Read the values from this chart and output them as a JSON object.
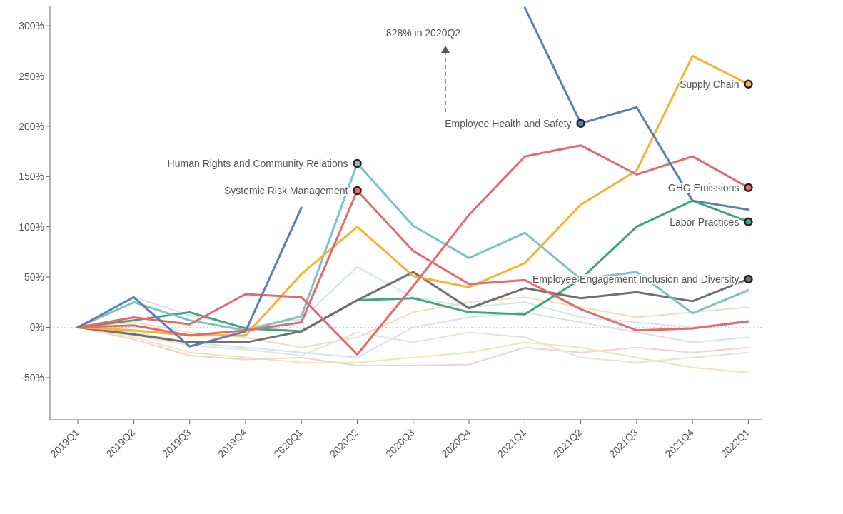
{
  "chart_data": {
    "type": "line",
    "categories": [
      "2019Q1",
      "2019Q2",
      "2019Q3",
      "2019Q4",
      "2020Q1",
      "2020Q2",
      "2020Q3",
      "2020Q4",
      "2021Q1",
      "2021Q2",
      "2021Q3",
      "2021Q4",
      "2022Q1"
    ],
    "ylim": [
      -92,
      320
    ],
    "yticks": [
      {
        "value": -50,
        "label": "-50%"
      },
      {
        "value": 0,
        "label": "0%"
      },
      {
        "value": 50,
        "label": "50%"
      },
      {
        "value": 100,
        "label": "100%"
      },
      {
        "value": 150,
        "label": "150%"
      },
      {
        "value": 200,
        "label": "200%"
      },
      {
        "value": 250,
        "label": "250%"
      },
      {
        "value": 300,
        "label": "300%"
      }
    ],
    "marker": "none",
    "line_style": "solid",
    "ref_lines": [
      {
        "axis": "y",
        "value": 0,
        "color": "#d0d0d0",
        "line_style": "dotted"
      }
    ],
    "series": [
      {
        "color": "#cfe5e8",
        "values": [
          0,
          30,
          12,
          0,
          8,
          60,
          30,
          20,
          25,
          10,
          5,
          0,
          5
        ]
      },
      {
        "color": "#efe6b8",
        "values": [
          0,
          -10,
          -25,
          -30,
          -35,
          -35,
          -30,
          -25,
          -15,
          -20,
          -30,
          -40,
          -45
        ]
      },
      {
        "color": "#f2d0d4",
        "values": [
          0,
          -12,
          -28,
          -32,
          -30,
          -38,
          -38,
          -37,
          -20,
          -25,
          -20,
          -25,
          -20
        ]
      },
      {
        "color": "#d4e2ef",
        "values": [
          0,
          -5,
          -15,
          -20,
          -25,
          -30,
          0,
          10,
          15,
          5,
          -5,
          -15,
          -10
        ]
      },
      {
        "color": "#f3dcc0",
        "values": [
          0,
          5,
          -5,
          -10,
          -20,
          -10,
          15,
          25,
          30,
          20,
          10,
          15,
          20
        ]
      },
      {
        "color": "#dde8d8",
        "values": [
          0,
          -8,
          -18,
          -22,
          -28,
          -5,
          -15,
          -5,
          -10,
          -30,
          -35,
          -30,
          -25
        ]
      },
      {
        "color": "#3fa57a",
        "values": [
          0,
          7,
          15,
          -1,
          -4,
          27,
          29,
          15,
          13,
          48,
          100,
          126,
          105
        ]
      },
      {
        "color": "#707070",
        "values": [
          0,
          -7,
          -15,
          -15,
          -4,
          27,
          55,
          19,
          39,
          29,
          35,
          26,
          48
        ]
      },
      {
        "color": "#7cc4c4",
        "values": [
          0,
          25,
          7,
          -3,
          11,
          163,
          101,
          69,
          94,
          48,
          55,
          14,
          37
        ]
      },
      {
        "color": "#f5b335",
        "values": [
          0,
          -3,
          -8,
          -8,
          53,
          100,
          51,
          40,
          64,
          122,
          156,
          270,
          242
        ]
      },
      {
        "color": "#e8696b",
        "values": [
          0,
          2,
          -8,
          -3,
          5,
          136,
          76,
          43,
          47,
          18,
          -3,
          -1,
          6
        ]
      },
      {
        "color": "#e8696b",
        "values": [
          0,
          10,
          3,
          33,
          30,
          -27,
          41,
          112,
          170,
          181,
          152,
          170,
          139
        ]
      },
      {
        "color": "#5b7fb5",
        "values": [
          0,
          30,
          -19,
          -4,
          119,
          null,
          null,
          null,
          318,
          203,
          219,
          126,
          117
        ]
      }
    ],
    "annotations": [
      {
        "text": "Human Rights and Community Relations",
        "x": "2020Q2",
        "y": 163
      },
      {
        "text": "Systemic Risk Management",
        "x": "2020Q2",
        "y": 136
      },
      {
        "text": "Employee Health and Safety",
        "x": "2021Q2",
        "y": 203
      },
      {
        "text": "Supply Chain",
        "x": "2022Q1",
        "y": 242
      },
      {
        "text": "GHG Emissions",
        "x": "2022Q1",
        "y": 139
      },
      {
        "text": "Labor Practices",
        "x": "2022Q1",
        "y": 105
      },
      {
        "text": "Employee Engagement Inclusion and Diversity",
        "x": "2022Q1",
        "y": 48
      },
      "828% in 2020Q2"
    ]
  }
}
